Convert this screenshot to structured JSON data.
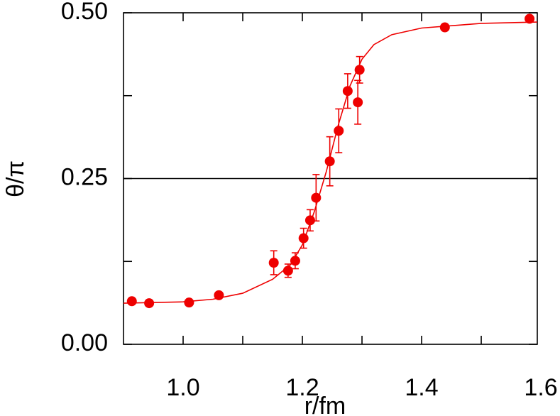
{
  "chart_data": {
    "type": "scatter",
    "x_label": "r/fm",
    "y_label": "θ/π",
    "xlim": [
      0.9,
      1.594
    ],
    "ylim": [
      0,
      0.5
    ],
    "xticks": [
      {
        "value": 1,
        "label": "1.0"
      },
      1.2,
      1.4,
      1.6
    ],
    "x_minor_ticks": [
      1.1,
      1.3,
      1.5
    ],
    "yticks": [
      {
        "value": 0,
        "label": "0.00"
      },
      0.25,
      {
        "value": 0.5,
        "label": "0.50"
      }
    ],
    "y_minor_ticks": [
      0.125,
      0.375
    ],
    "hline": 0.25,
    "color": "#ee0000",
    "series": [
      {
        "x": [
          0.914,
          0.943,
          1.01,
          1.06,
          1.152,
          1.176,
          1.188,
          1.202,
          1.213,
          1.223,
          1.246,
          1.261,
          1.276,
          1.293,
          1.296,
          1.439,
          1.581
        ],
        "values": [
          0.065,
          0.062,
          0.063,
          0.074,
          0.123,
          0.111,
          0.126,
          0.16,
          0.187,
          0.221,
          0.276,
          0.322,
          0.382,
          0.365,
          0.414,
          0.478,
          0.491
        ],
        "errors": [
          null,
          null,
          null,
          null,
          0.018,
          0.01,
          0.012,
          0.015,
          0.016,
          0.035,
          0.037,
          0.033,
          0.026,
          0.033,
          0.02,
          null,
          null
        ]
      }
    ],
    "fit": {
      "x": [
        0.9,
        1.0,
        1.05,
        1.1,
        1.15,
        1.18,
        1.2,
        1.22,
        1.24,
        1.26,
        1.28,
        1.3,
        1.32,
        1.35,
        1.4,
        1.5,
        1.594
      ],
      "values": [
        0.062,
        0.064,
        0.068,
        0.077,
        0.098,
        0.12,
        0.15,
        0.2,
        0.26,
        0.33,
        0.39,
        0.43,
        0.452,
        0.467,
        0.477,
        0.484,
        0.486
      ]
    }
  }
}
